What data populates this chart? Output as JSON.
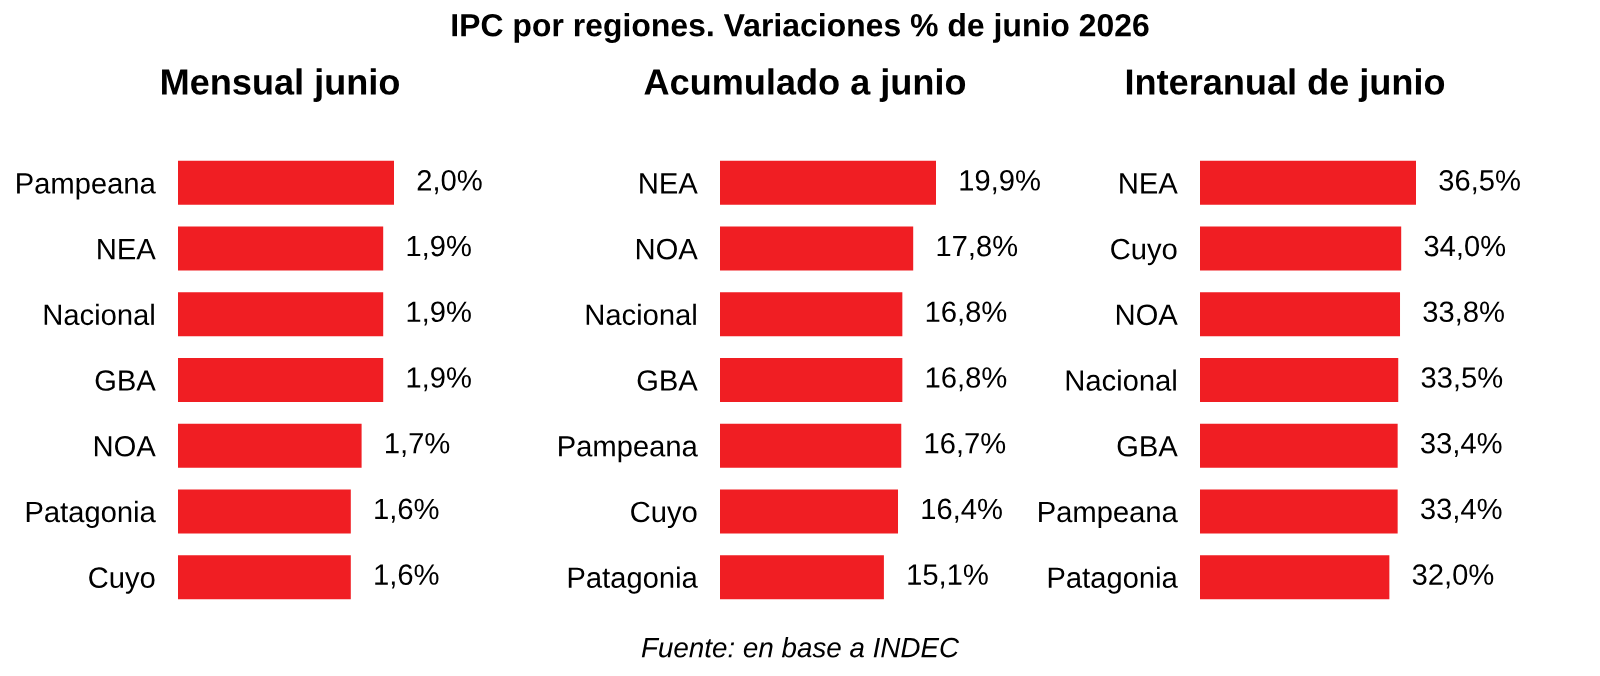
{
  "chart_data": [
    {
      "type": "bar",
      "orientation": "horizontal",
      "title": "Mensual junio",
      "annotations": [
        "IPC por regiones. Variaciones % de junio 2026"
      ],
      "categories": [
        "Pampeana",
        "NEA",
        "Nacional",
        "GBA",
        "NOA",
        "Patagonia",
        "Cuyo"
      ],
      "series": [
        {
          "color": "#f01e23",
          "values": [
            2.0,
            1.9,
            1.9,
            1.9,
            1.7,
            1.6,
            1.6
          ],
          "value_labels": [
            "2,0%",
            "1,9%",
            "1,9%",
            "1,9%",
            "1,7%",
            "1,6%",
            "1,6%"
          ]
        }
      ]
    },
    {
      "type": "bar",
      "orientation": "horizontal",
      "title": "Acumulado a junio",
      "annotations": [
        "Fuente: en base a INDEC"
      ],
      "categories": [
        "NEA",
        "NOA",
        "Nacional",
        "GBA",
        "Pampeana",
        "Cuyo",
        "Patagonia"
      ],
      "series": [
        {
          "color": "#f01e23",
          "values": [
            19.9,
            17.8,
            16.8,
            16.8,
            16.7,
            16.4,
            15.1
          ],
          "value_labels": [
            "19,9%",
            "17,8%",
            "16,8%",
            "16,8%",
            "16,7%",
            "16,4%",
            "15,1%"
          ]
        }
      ]
    },
    {
      "type": "bar",
      "orientation": "horizontal",
      "title": "Interanual de junio",
      "categories": [
        "NEA",
        "Cuyo",
        "NOA",
        "Nacional",
        "GBA",
        "Pampeana",
        "Patagonia"
      ],
      "series": [
        {
          "color": "#f01e23",
          "values": [
            36.5,
            34.0,
            33.8,
            33.5,
            33.4,
            33.4,
            32.0
          ],
          "value_labels": [
            "36,5%",
            "34,0%",
            "33,8%",
            "33,5%",
            "33,4%",
            "33,4%",
            "32,0%"
          ]
        }
      ]
    }
  ]
}
